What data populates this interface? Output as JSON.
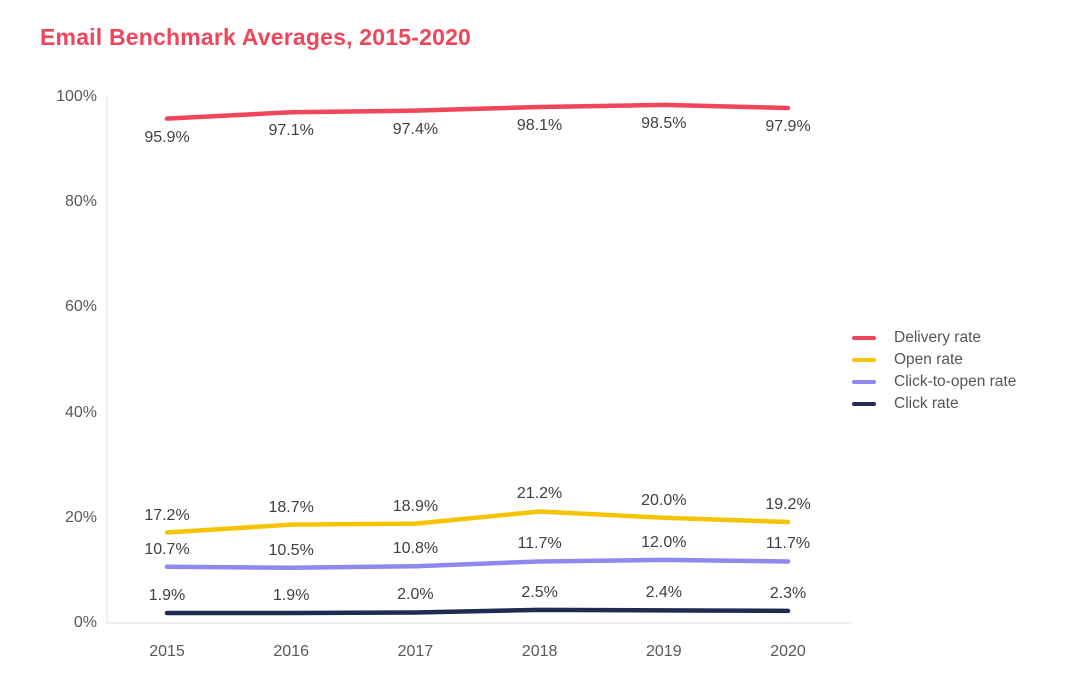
{
  "title": "Email Benchmark Averages, 2015-2020",
  "colors": {
    "title": "#f1455c",
    "axis_line": "#e9e9e9",
    "tick_text": "#58595b",
    "data_label_text": "#3f4044",
    "legend_text": "#54565a",
    "background": "#ffffff"
  },
  "chart_data": {
    "type": "line",
    "title": "Email Benchmark Averages, 2015-2020",
    "x": [
      2015,
      2016,
      2017,
      2018,
      2019,
      2020
    ],
    "xlabel": "",
    "ylabel": "",
    "ylim": [
      0,
      100
    ],
    "yticks": [
      "0%",
      "20%",
      "40%",
      "60%",
      "80%",
      "100%"
    ],
    "grid": false,
    "legend_position": "right",
    "series": [
      {
        "name": "Delivery rate",
        "color": "#f1455c",
        "values": [
          95.9,
          97.1,
          97.4,
          98.1,
          98.5,
          97.9
        ],
        "labels": [
          "95.9%",
          "97.1%",
          "97.4%",
          "98.1%",
          "98.5%",
          "97.9%"
        ],
        "label_position": "below"
      },
      {
        "name": "Open rate",
        "color": "#f5c400",
        "values": [
          17.2,
          18.7,
          18.9,
          21.2,
          20.0,
          19.2
        ],
        "labels": [
          "17.2%",
          "18.7%",
          "18.9%",
          "21.2%",
          "20.0%",
          "19.2%"
        ],
        "label_position": "above"
      },
      {
        "name": "Click-to-open rate",
        "color": "#8e88ef",
        "values": [
          10.7,
          10.5,
          10.8,
          11.7,
          12.0,
          11.7
        ],
        "labels": [
          "10.7%",
          "10.5%",
          "10.8%",
          "11.7%",
          "12.0%",
          "11.7%"
        ],
        "label_position": "above"
      },
      {
        "name": "Click rate",
        "color": "#202b51",
        "values": [
          1.9,
          1.9,
          2.0,
          2.5,
          2.4,
          2.3
        ],
        "labels": [
          "1.9%",
          "1.9%",
          "2.0%",
          "2.5%",
          "2.4%",
          "2.3%"
        ],
        "label_position": "above"
      }
    ]
  }
}
